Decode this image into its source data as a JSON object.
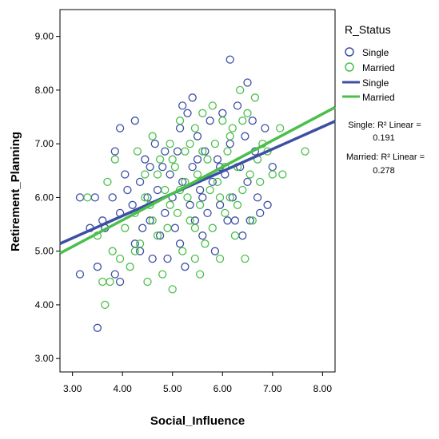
{
  "chart_data": {
    "type": "scatter",
    "xlabel": "Social_Influence",
    "ylabel": "Retirement_Planning",
    "xlim": [
      2.75,
      8.25
    ],
    "ylim": [
      2.75,
      9.5
    ],
    "x_ticks": [
      "3.00",
      "4.00",
      "5.00",
      "6.00",
      "7.00",
      "8.00"
    ],
    "y_ticks": [
      "3.00",
      "4.00",
      "5.00",
      "6.00",
      "7.00",
      "8.00",
      "9.00"
    ],
    "grid": false,
    "legend": {
      "title": "R_Status",
      "placement": "right",
      "markers": [
        {
          "name": "Single",
          "color": "#3d4fa5"
        },
        {
          "name": "Married",
          "color": "#4bbf4b"
        }
      ],
      "lines": [
        {
          "name": "Single",
          "color": "#3d4fa5"
        },
        {
          "name": "Married",
          "color": "#4bbf4b"
        }
      ]
    },
    "fit_annotations": {
      "single_line1": "Single: R² Linear =",
      "single_line2": "0.191",
      "married_line1": "Married: R² Linear =",
      "married_line2": "0.278"
    },
    "series": [
      {
        "name": "Single",
        "color": "#3d4fa5",
        "fit": [
          [
            2.75,
            5.14
          ],
          [
            8.25,
            7.42
          ]
        ],
        "points": [
          [
            3.15,
            6.0
          ],
          [
            3.15,
            4.57
          ],
          [
            3.35,
            5.43
          ],
          [
            3.45,
            6.0
          ],
          [
            3.5,
            4.71
          ],
          [
            3.5,
            3.57
          ],
          [
            3.6,
            5.57
          ],
          [
            3.65,
            5.43
          ],
          [
            3.8,
            6.0
          ],
          [
            3.85,
            6.86
          ],
          [
            3.85,
            4.57
          ],
          [
            3.95,
            7.29
          ],
          [
            3.95,
            5.71
          ],
          [
            4.05,
            6.43
          ],
          [
            4.1,
            6.14
          ],
          [
            4.2,
            5.86
          ],
          [
            4.25,
            7.43
          ],
          [
            4.25,
            5.14
          ],
          [
            4.35,
            6.29
          ],
          [
            4.4,
            5.43
          ],
          [
            4.45,
            6.71
          ],
          [
            4.5,
            6.0
          ],
          [
            4.55,
            5.57
          ],
          [
            4.6,
            4.86
          ],
          [
            4.65,
            7.0
          ],
          [
            4.7,
            6.14
          ],
          [
            4.75,
            5.29
          ],
          [
            4.8,
            6.57
          ],
          [
            4.85,
            5.71
          ],
          [
            4.9,
            4.86
          ],
          [
            4.95,
            6.43
          ],
          [
            5.0,
            6.0
          ],
          [
            5.05,
            5.43
          ],
          [
            5.1,
            6.86
          ],
          [
            5.15,
            5.14
          ],
          [
            5.2,
            7.71
          ],
          [
            5.2,
            6.29
          ],
          [
            5.25,
            4.71
          ],
          [
            5.3,
            7.57
          ],
          [
            5.35,
            5.86
          ],
          [
            5.4,
            7.86
          ],
          [
            5.4,
            6.57
          ],
          [
            5.45,
            5.57
          ],
          [
            5.5,
            7.14
          ],
          [
            5.55,
            6.14
          ],
          [
            5.6,
            5.29
          ],
          [
            5.65,
            6.86
          ],
          [
            5.7,
            5.71
          ],
          [
            5.75,
            7.43
          ],
          [
            5.8,
            6.29
          ],
          [
            5.85,
            5.0
          ],
          [
            5.9,
            6.71
          ],
          [
            5.95,
            5.86
          ],
          [
            6.0,
            7.57
          ],
          [
            6.05,
            6.43
          ],
          [
            6.1,
            5.57
          ],
          [
            6.15,
            7.0
          ],
          [
            6.15,
            8.57
          ],
          [
            6.2,
            6.0
          ],
          [
            6.3,
            7.71
          ],
          [
            6.35,
            6.57
          ],
          [
            6.4,
            5.29
          ],
          [
            6.45,
            7.14
          ],
          [
            6.5,
            8.14
          ],
          [
            6.5,
            6.29
          ],
          [
            6.55,
            5.57
          ],
          [
            6.6,
            7.43
          ],
          [
            6.65,
            6.86
          ],
          [
            6.7,
            6.0
          ],
          [
            6.75,
            5.71
          ],
          [
            6.85,
            7.29
          ],
          [
            6.9,
            5.86
          ],
          [
            7.0,
            6.57
          ],
          [
            5.15,
            7.29
          ],
          [
            4.55,
            6.57
          ],
          [
            5.6,
            6.0
          ],
          [
            5.95,
            6.57
          ],
          [
            4.35,
            5.0
          ],
          [
            3.95,
            4.43
          ],
          [
            6.25,
            5.57
          ],
          [
            4.85,
            6.86
          ],
          [
            5.5,
            6.71
          ]
        ]
      },
      {
        "name": "Married",
        "color": "#4bbf4b",
        "fit": [
          [
            2.75,
            4.96
          ],
          [
            8.25,
            7.68
          ]
        ],
        "points": [
          [
            3.3,
            6.0
          ],
          [
            3.5,
            5.29
          ],
          [
            3.6,
            4.43
          ],
          [
            3.65,
            4.0
          ],
          [
            3.7,
            6.29
          ],
          [
            3.8,
            5.0
          ],
          [
            3.85,
            6.71
          ],
          [
            3.95,
            4.86
          ],
          [
            4.05,
            5.43
          ],
          [
            4.15,
            4.71
          ],
          [
            4.25,
            5.71
          ],
          [
            4.3,
            6.86
          ],
          [
            4.35,
            5.14
          ],
          [
            4.45,
            6.43
          ],
          [
            4.5,
            4.43
          ],
          [
            4.55,
            5.86
          ],
          [
            4.6,
            7.14
          ],
          [
            4.7,
            5.29
          ],
          [
            4.75,
            6.71
          ],
          [
            4.8,
            4.57
          ],
          [
            4.85,
            6.14
          ],
          [
            4.9,
            5.43
          ],
          [
            4.95,
            7.0
          ],
          [
            5.0,
            4.29
          ],
          [
            5.05,
            6.57
          ],
          [
            5.1,
            5.71
          ],
          [
            5.15,
            7.43
          ],
          [
            5.2,
            5.0
          ],
          [
            5.25,
            6.86
          ],
          [
            5.3,
            6.0
          ],
          [
            5.35,
            5.57
          ],
          [
            5.45,
            7.29
          ],
          [
            5.45,
            4.86
          ],
          [
            5.5,
            6.43
          ],
          [
            5.55,
            5.86
          ],
          [
            5.6,
            7.57
          ],
          [
            5.65,
            5.14
          ],
          [
            5.7,
            6.71
          ],
          [
            5.75,
            6.14
          ],
          [
            5.8,
            5.43
          ],
          [
            5.85,
            7.0
          ],
          [
            5.9,
            6.29
          ],
          [
            5.95,
            4.86
          ],
          [
            6.0,
            7.43
          ],
          [
            6.05,
            5.71
          ],
          [
            6.1,
            6.86
          ],
          [
            6.15,
            6.0
          ],
          [
            6.2,
            7.29
          ],
          [
            6.25,
            5.29
          ],
          [
            6.3,
            6.57
          ],
          [
            6.35,
            8.0
          ],
          [
            6.4,
            6.14
          ],
          [
            6.45,
            4.86
          ],
          [
            6.5,
            7.57
          ],
          [
            6.55,
            6.43
          ],
          [
            6.6,
            5.57
          ],
          [
            6.65,
            7.86
          ],
          [
            6.7,
            6.71
          ],
          [
            6.75,
            6.29
          ],
          [
            6.8,
            7.0
          ],
          [
            6.9,
            6.86
          ],
          [
            7.0,
            6.43
          ],
          [
            7.15,
            7.29
          ],
          [
            7.2,
            6.43
          ],
          [
            7.65,
            6.86
          ],
          [
            4.45,
            6.0
          ],
          [
            5.25,
            6.29
          ],
          [
            5.6,
            6.86
          ],
          [
            4.95,
            5.86
          ],
          [
            5.8,
            7.71
          ],
          [
            6.05,
            6.57
          ],
          [
            4.6,
            5.57
          ],
          [
            5.35,
            7.0
          ],
          [
            6.3,
            5.86
          ],
          [
            3.75,
            4.43
          ],
          [
            4.25,
            5.0
          ],
          [
            5.0,
            6.71
          ],
          [
            5.55,
            4.57
          ],
          [
            6.15,
            7.14
          ],
          [
            4.7,
            6.43
          ],
          [
            5.15,
            6.14
          ],
          [
            5.45,
            5.43
          ],
          [
            5.95,
            6.0
          ],
          [
            6.4,
            7.43
          ]
        ]
      }
    ]
  }
}
